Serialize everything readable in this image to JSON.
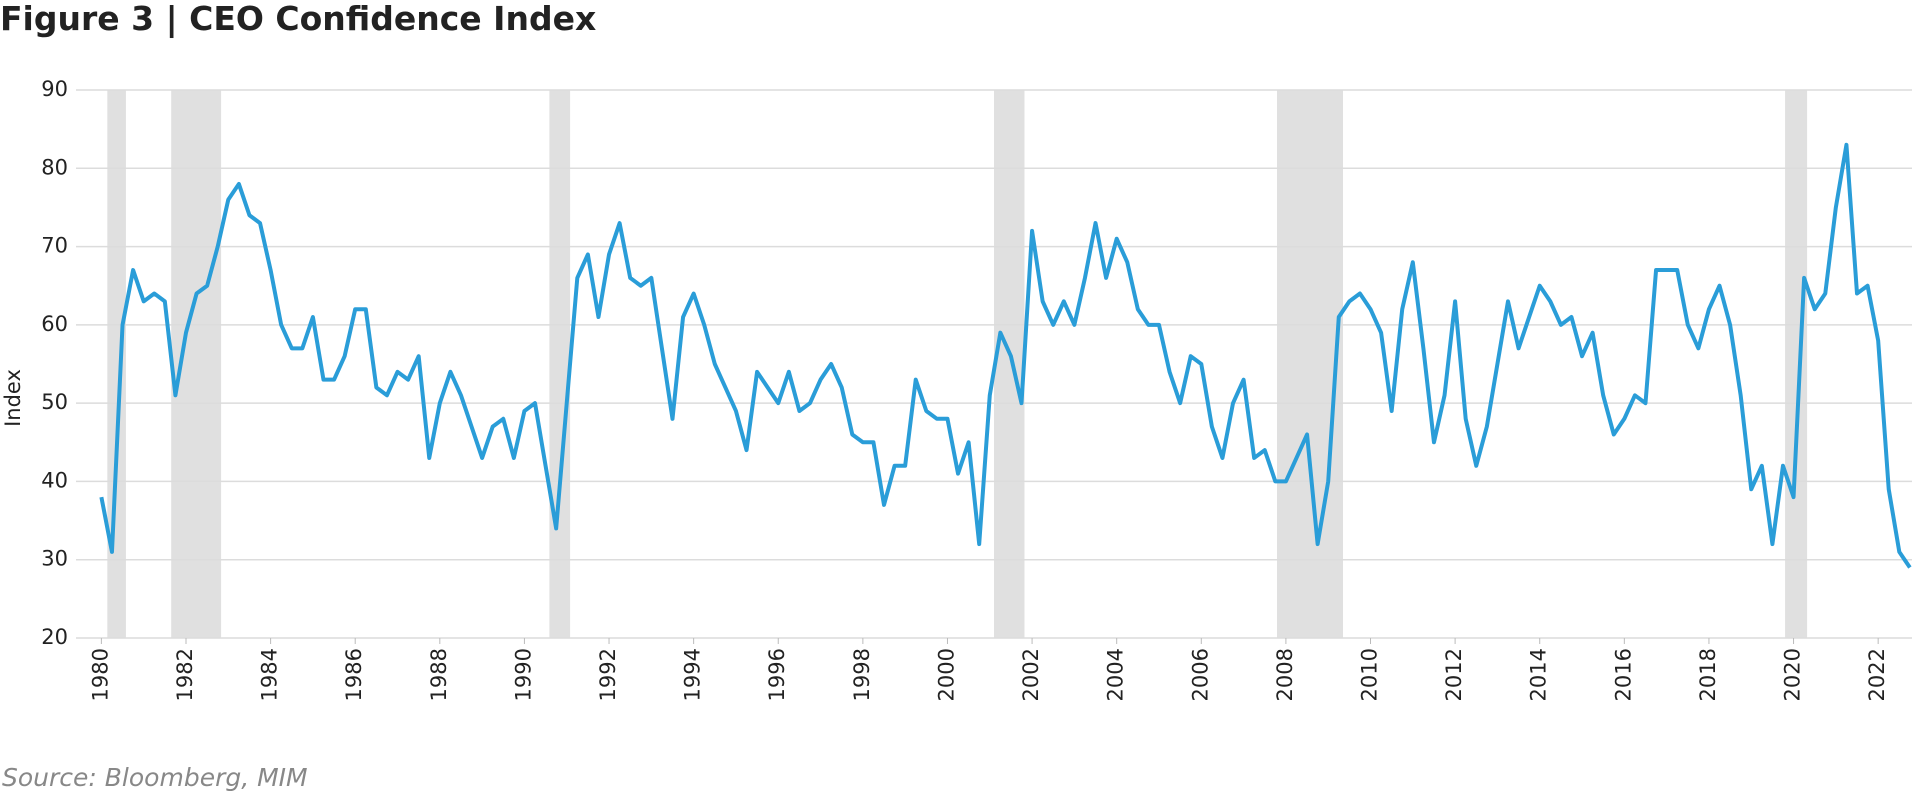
{
  "chart_data": {
    "type": "line",
    "title": "Figure 3 | CEO Confidence Index",
    "y_label": "Index",
    "source": "Source: Bloomberg, MIM",
    "x": [
      1980,
      1980.25,
      1980.5,
      1980.75,
      1981,
      1981.25,
      1981.5,
      1981.75,
      1982,
      1982.25,
      1982.5,
      1982.75,
      1983,
      1983.25,
      1983.5,
      1983.75,
      1984,
      1984.25,
      1984.5,
      1984.75,
      1985,
      1985.25,
      1985.5,
      1985.75,
      1986,
      1986.25,
      1986.5,
      1986.75,
      1987,
      1987.25,
      1987.5,
      1987.75,
      1988,
      1988.25,
      1988.5,
      1988.75,
      1989,
      1989.25,
      1989.5,
      1989.75,
      1990,
      1990.25,
      1990.5,
      1990.75,
      1991,
      1991.25,
      1991.5,
      1991.75,
      1992,
      1992.25,
      1992.5,
      1992.75,
      1993,
      1993.25,
      1993.5,
      1993.75,
      1994,
      1994.25,
      1994.5,
      1994.75,
      1995,
      1995.25,
      1995.5,
      1995.75,
      1996,
      1996.25,
      1996.5,
      1996.75,
      1997,
      1997.25,
      1997.5,
      1997.75,
      1998,
      1998.25,
      1998.5,
      1998.75,
      1999,
      1999.25,
      1999.5,
      1999.75,
      2000,
      2000.25,
      2000.5,
      2000.75,
      2001,
      2001.25,
      2001.5,
      2001.75,
      2002,
      2002.25,
      2002.5,
      2002.75,
      2003,
      2003.25,
      2003.5,
      2003.75,
      2004,
      2004.25,
      2004.5,
      2004.75,
      2005,
      2005.25,
      2005.5,
      2005.75,
      2006,
      2006.25,
      2006.5,
      2006.75,
      2007,
      2007.25,
      2007.5,
      2007.75,
      2008,
      2008.25,
      2008.5,
      2008.75,
      2009,
      2009.25,
      2009.5,
      2009.75,
      2010,
      2010.25,
      2010.5,
      2010.75,
      2011,
      2011.25,
      2011.5,
      2011.75,
      2012,
      2012.25,
      2012.5,
      2012.75,
      2013,
      2013.25,
      2013.5,
      2013.75,
      2014,
      2014.25,
      2014.5,
      2014.75,
      2015,
      2015.25,
      2015.5,
      2015.75,
      2016,
      2016.25,
      2016.5,
      2016.75,
      2017,
      2017.25,
      2017.5,
      2017.75,
      2018,
      2018.25,
      2018.5,
      2018.75,
      2019,
      2019.25,
      2019.5,
      2019.75,
      2020,
      2020.25,
      2020.5,
      2020.75,
      2021,
      2021.25,
      2021.5,
      2021.75,
      2022,
      2022.25,
      2022.5,
      2022.75
    ],
    "series": [
      {
        "color": "#2a9dd8",
        "values": [
          38,
          31,
          60,
          67,
          63,
          64,
          63,
          51,
          59,
          64,
          65,
          70,
          76,
          78,
          74,
          73,
          67,
          60,
          57,
          57,
          61,
          53,
          53,
          56,
          62,
          62,
          52,
          51,
          54,
          53,
          56,
          43,
          50,
          54,
          51,
          47,
          43,
          47,
          48,
          43,
          49,
          50,
          42,
          34,
          50,
          66,
          69,
          61,
          69,
          73,
          66,
          65,
          66,
          57,
          48,
          61,
          64,
          60,
          55,
          52,
          49,
          44,
          54,
          52,
          50,
          54,
          49,
          50,
          53,
          55,
          52,
          46,
          45,
          45,
          37,
          42,
          42,
          53,
          49,
          48,
          48,
          41,
          45,
          32,
          51,
          59,
          56,
          50,
          72,
          63,
          60,
          63,
          60,
          66,
          73,
          66,
          71,
          68,
          62,
          60,
          60,
          54,
          50,
          56,
          55,
          47,
          43,
          50,
          53,
          43,
          44,
          40,
          40,
          43,
          46,
          32,
          40,
          61,
          63,
          64,
          62,
          59,
          49,
          62,
          68,
          57,
          45,
          51,
          63,
          48,
          42,
          47,
          55,
          63,
          57,
          61,
          65,
          63,
          60,
          61,
          56,
          59,
          51,
          46,
          48,
          51,
          50,
          67,
          67,
          67,
          60,
          57,
          62,
          65,
          60,
          51,
          39,
          42,
          32,
          42,
          38,
          66,
          62,
          64,
          75,
          83,
          64,
          65,
          58,
          39,
          31,
          29
        ]
      }
    ],
    "recessions": [
      [
        1980.14,
        1980.58
      ],
      [
        1981.65,
        1982.83
      ],
      [
        1990.59,
        1991.08
      ],
      [
        2001.1,
        2001.82
      ],
      [
        2007.79,
        2009.35
      ],
      [
        2019.8,
        2020.32
      ]
    ],
    "recession_color": "#e0e0e0",
    "xlim": [
      1979.4,
      2022.8
    ],
    "xticks": [
      1980,
      1982,
      1984,
      1986,
      1988,
      1990,
      1992,
      1994,
      1996,
      1998,
      2000,
      2002,
      2004,
      2006,
      2008,
      2010,
      2012,
      2014,
      2016,
      2018,
      2020,
      2022
    ],
    "ylim": [
      20,
      90
    ],
    "yticks": [
      20,
      30,
      40,
      50,
      60,
      70,
      80,
      90
    ],
    "grid": true
  }
}
